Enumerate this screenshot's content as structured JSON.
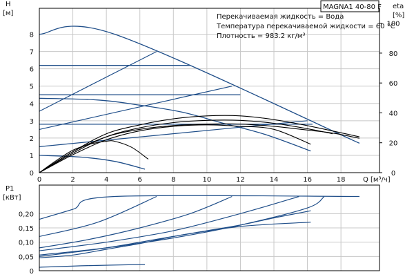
{
  "model_label": "MAGNA1 40-80 F",
  "legend": [
    "Перекачиваемая жидкость = Вода",
    "Температура перекачиваемой жидкости = 60 °C",
    "Плотность = 983.2 кг/м³"
  ],
  "chart_data": [
    {
      "type": "line",
      "panel": "head",
      "ylabel": "H",
      "yunit": "[м]",
      "y2label": "eta",
      "y2unit": "[%]",
      "xlabel": "Q",
      "xunit": "[м³/ч]",
      "xlim": [
        0,
        20.3
      ],
      "ylim": [
        0,
        9.5
      ],
      "y2lim": [
        0,
        110
      ],
      "xticks": [
        0,
        2,
        4,
        6,
        8,
        10,
        12,
        14,
        16,
        18
      ],
      "xtick_labels": [
        "0",
        "2",
        "4",
        "6",
        "8",
        "10",
        "12",
        "14",
        "16",
        "18"
      ],
      "yticks": [
        0,
        1,
        2,
        3,
        4,
        5,
        6,
        7,
        8
      ],
      "ytick_labels": [
        "0",
        "1",
        "2",
        "3",
        "4",
        "5",
        "6",
        "7",
        "8"
      ],
      "y2ticks": [
        0,
        20,
        40,
        60,
        80,
        100
      ],
      "y2tick_labels": [
        "0",
        "20",
        "40",
        "60",
        "80",
        "100"
      ],
      "grid": true,
      "pump_curves": [
        [
          [
            0,
            8.0
          ],
          [
            4.5,
            8.0
          ],
          [
            19.1,
            1.7
          ]
        ],
        [
          [
            0,
            6.2
          ],
          [
            9.0,
            6.2
          ]
        ],
        [
          [
            0,
            4.5
          ],
          [
            12.0,
            4.5
          ]
        ],
        [
          [
            0,
            4.3
          ],
          [
            3.5,
            4.2
          ],
          [
            6.0,
            3.9
          ],
          [
            8.5,
            3.5
          ],
          [
            11.0,
            2.85
          ],
          [
            13.5,
            2.2
          ],
          [
            16.2,
            1.25
          ]
        ],
        [
          [
            0,
            2.8
          ],
          [
            16.3,
            2.8
          ]
        ],
        [
          [
            0,
            1.0
          ],
          [
            2.5,
            0.9
          ],
          [
            4.5,
            0.65
          ],
          [
            6.3,
            0.2
          ]
        ]
      ],
      "system_curves": [
        [
          [
            0,
            3.55
          ],
          [
            7.0,
            7.0
          ]
        ],
        [
          [
            0,
            2.5
          ],
          [
            11.5,
            5.0
          ]
        ],
        [
          [
            0,
            1.5
          ],
          [
            16.0,
            3.0
          ]
        ]
      ],
      "efficiency_curves": [
        [
          [
            0,
            0
          ],
          [
            1.0,
            8
          ],
          [
            2.0,
            15
          ],
          [
            3.0,
            19
          ],
          [
            4.0,
            21
          ],
          [
            4.5,
            21
          ],
          [
            5.5,
            17
          ],
          [
            6.5,
            9
          ]
        ],
        [
          [
            0,
            0
          ],
          [
            2.0,
            14
          ],
          [
            4.0,
            24
          ],
          [
            6.0,
            29
          ],
          [
            8.0,
            31.5
          ],
          [
            10.0,
            32.5
          ],
          [
            12.0,
            32.5
          ],
          [
            14.0,
            31
          ],
          [
            16.0,
            28.5
          ],
          [
            17.5,
            26.5
          ],
          [
            19.1,
            23
          ]
        ],
        [
          [
            0,
            0
          ],
          [
            2.0,
            13
          ],
          [
            4.0,
            24
          ],
          [
            6.0,
            30
          ],
          [
            8.0,
            33.5
          ],
          [
            10.0,
            35
          ],
          [
            12.0,
            35
          ],
          [
            14.0,
            33
          ],
          [
            16.2,
            29
          ],
          [
            17.5,
            26
          ]
        ],
        [
          [
            0,
            0
          ],
          [
            2.0,
            14
          ],
          [
            4.0,
            26
          ],
          [
            6.0,
            32
          ],
          [
            8.0,
            36
          ],
          [
            10.0,
            38
          ],
          [
            12.0,
            38
          ],
          [
            14.0,
            35.5
          ],
          [
            16.2,
            31
          ],
          [
            19.1,
            24
          ]
        ],
        [
          [
            0,
            0
          ],
          [
            2.0,
            12
          ],
          [
            4.0,
            22
          ],
          [
            6.0,
            28
          ],
          [
            8.0,
            31
          ],
          [
            10.0,
            32
          ],
          [
            12.0,
            31
          ],
          [
            14.0,
            29
          ],
          [
            16.2,
            19
          ]
        ]
      ]
    },
    {
      "type": "line",
      "panel": "power",
      "ylabel": "P1",
      "yunit": "[кВт]",
      "xlim": [
        0,
        20.3
      ],
      "ylim": [
        0,
        0.3
      ],
      "yticks": [
        0,
        0.05,
        0.1,
        0.15,
        0.2
      ],
      "ytick_labels": [
        "0",
        "0,05",
        "0,10",
        "0,15",
        "0,20"
      ],
      "grid": true,
      "power_curves": [
        [
          [
            0,
            0.18
          ],
          [
            2.0,
            0.215
          ],
          [
            4.5,
            0.26
          ],
          [
            19.1,
            0.26
          ]
        ],
        [
          [
            0,
            0.12
          ],
          [
            3.5,
            0.17
          ],
          [
            7.0,
            0.26
          ]
        ],
        [
          [
            0,
            0.08
          ],
          [
            3.0,
            0.11
          ],
          [
            6.0,
            0.15
          ],
          [
            9.0,
            0.2
          ],
          [
            11.5,
            0.26
          ]
        ],
        [
          [
            0,
            0.07
          ],
          [
            4.0,
            0.1
          ],
          [
            8.0,
            0.14
          ],
          [
            12.0,
            0.2
          ],
          [
            15.5,
            0.26
          ]
        ],
        [
          [
            0,
            0.055
          ],
          [
            4.0,
            0.08
          ],
          [
            8.0,
            0.115
          ],
          [
            12.0,
            0.16
          ],
          [
            16.0,
            0.22
          ],
          [
            17.0,
            0.26
          ]
        ],
        [
          [
            0,
            0.045
          ],
          [
            2.0,
            0.055
          ],
          [
            4.0,
            0.075
          ],
          [
            6.0,
            0.095
          ],
          [
            8.0,
            0.12
          ],
          [
            10.0,
            0.14
          ],
          [
            12.0,
            0.16
          ],
          [
            14.0,
            0.185
          ],
          [
            16.2,
            0.21
          ]
        ],
        [
          [
            0,
            0.05
          ],
          [
            4.0,
            0.08
          ],
          [
            8.0,
            0.12
          ],
          [
            12.0,
            0.155
          ],
          [
            16.2,
            0.17
          ]
        ],
        [
          [
            0,
            0.012
          ],
          [
            3.0,
            0.018
          ],
          [
            6.3,
            0.022
          ]
        ]
      ]
    }
  ]
}
